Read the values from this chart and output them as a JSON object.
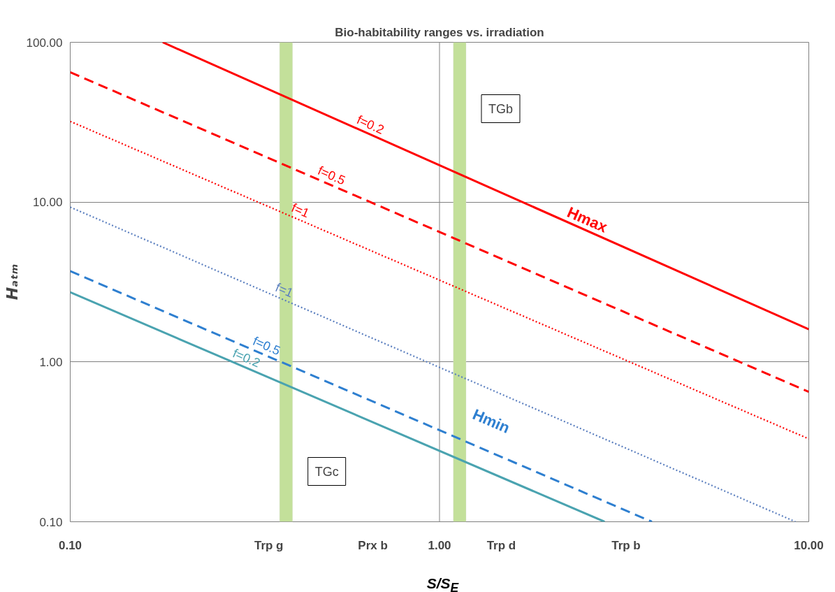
{
  "chart_data": {
    "type": "line",
    "title": "Bio-habitability ranges vs. irradiation",
    "xlabel": "S/S$_{E}$",
    "ylabel": "Hₐₜₘ",
    "log": "xy",
    "grid": "y",
    "xlim": [
      0.1,
      10
    ],
    "xticks": [
      {
        "value": 0.1,
        "label": "0.10"
      },
      {
        "value": 0.345,
        "label": "Trp g"
      },
      {
        "value": 0.66,
        "label": "Prx b"
      },
      {
        "value": 1,
        "label": "1.00"
      },
      {
        "value": 1.47,
        "label": "Trp d"
      },
      {
        "value": 3.2,
        "label": "Trp b"
      },
      {
        "value": 10,
        "label": "10.00"
      }
    ],
    "ylim": [
      0.1,
      100
    ],
    "yticks": [
      {
        "value": 0.1,
        "label": "0.10"
      },
      {
        "value": 1,
        "label": "1.00"
      },
      {
        "value": 10,
        "label": "10.00"
      },
      {
        "value": 100,
        "label": "100.00"
      }
    ],
    "series": [
      {
        "name": "f=0.2",
        "color": "#ff0000",
        "line_style": "solid",
        "x": [
          0.178,
          10
        ],
        "values": [
          100,
          1.6
        ]
      },
      {
        "name": "f=0.5",
        "color": "#ff0000",
        "line_style": "dashed",
        "x": [
          0.1,
          10
        ],
        "values": [
          65,
          0.65
        ]
      },
      {
        "name": "f=1",
        "color": "#ff0000",
        "line_style": "dotted",
        "x": [
          0.1,
          10
        ],
        "values": [
          32,
          0.33
        ]
      },
      {
        "name": "f=1",
        "color": "#5b7fbf",
        "line_style": "dotted",
        "x": [
          0.1,
          9.2
        ],
        "values": [
          9.3,
          0.1
        ]
      },
      {
        "name": "f=0.5",
        "color": "#2e7fd0",
        "line_style": "dashed",
        "x": [
          0.1,
          3.76
        ],
        "values": [
          3.7,
          0.1
        ]
      },
      {
        "name": "f=0.2",
        "color": "#4aa3b0",
        "line_style": "solid",
        "x": [
          0.1,
          2.8
        ],
        "values": [
          2.73,
          0.1
        ]
      }
    ],
    "ref_lines": [
      {
        "axis": "x",
        "value": 1,
        "color": "#808080"
      }
    ],
    "bands": [
      {
        "axis": "x",
        "from": 0.369,
        "to": 0.4,
        "color": "#c3e09a",
        "label": "TGc"
      },
      {
        "axis": "x",
        "from": 1.09,
        "to": 1.18,
        "color": "#c3e09a",
        "label": "TGb"
      }
    ],
    "annotations": [
      "Hmax",
      "Hmin"
    ]
  }
}
